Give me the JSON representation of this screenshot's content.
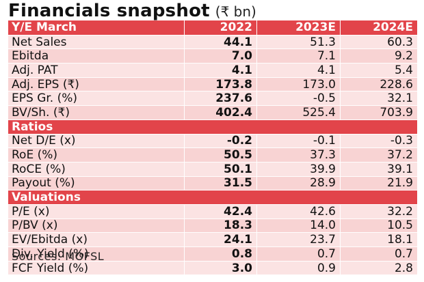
{
  "title": "Financials snapshot",
  "unit": "(₹ bn)",
  "header": [
    "Y/E March",
    "2022",
    "2023E",
    "2024E"
  ],
  "sections": [
    {
      "name": "",
      "rows": [
        [
          "Net Sales",
          "44.1",
          "51.3",
          "60.3"
        ],
        [
          "Ebitda",
          "7.0",
          "7.1",
          "9.2"
        ],
        [
          "Adj. PAT",
          "4.1",
          "4.1",
          "5.4"
        ],
        [
          "Adj. EPS (₹)",
          "173.8",
          "173.0",
          "228.6"
        ],
        [
          "EPS Gr. (%)",
          "237.6",
          "-0.5",
          "32.1"
        ],
        [
          "BV/Sh. (₹)",
          "402.4",
          "525.4",
          "703.9"
        ]
      ]
    },
    {
      "name": "Ratios",
      "rows": [
        [
          "Net D/E (x)",
          "-0.2",
          "-0.1",
          "-0.3"
        ],
        [
          "RoE (%)",
          "50.5",
          "37.3",
          "37.2"
        ],
        [
          "RoCE (%)",
          "50.1",
          "39.9",
          "39.1"
        ],
        [
          "Payout (%)",
          "31.5",
          "28.9",
          "21.9"
        ]
      ]
    },
    {
      "name": "Valuations",
      "rows": [
        [
          "P/E (x)",
          "42.4",
          "42.6",
          "32.2"
        ],
        [
          "P/BV (x)",
          "18.3",
          "14.0",
          "10.5"
        ],
        [
          "EV/Ebitda (x)",
          "24.1",
          "23.7",
          "18.1"
        ],
        [
          "Div. Yield (%)",
          "0.8",
          "0.7",
          "0.7"
        ],
        [
          "FCF Yield (%)",
          "3.0",
          "0.9",
          "2.8"
        ]
      ]
    }
  ],
  "source": "Sources: MOFSL",
  "colors": {
    "accent": "#e2444a",
    "row_light": "#fbe3e3",
    "row_dark": "#f8d3d3"
  }
}
